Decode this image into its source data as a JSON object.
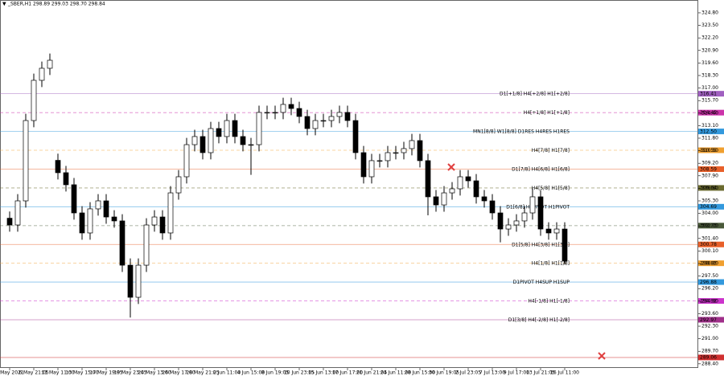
{
  "chart_data": {
    "type": "candlestick",
    "title": "_SBER,H1  298.89 299.03 298.70 298.84",
    "up_color": "#ffffff",
    "down_color": "#000000",
    "line_color": "#000000",
    "xlim": [
      -1.2,
      85.6
    ],
    "ylim": [
      287.97,
      326.13
    ],
    "xticks": [
      {
        "value": 0,
        "label": "4 May 2021"
      },
      {
        "value": 3,
        "label": "6 May 21:05"
      },
      {
        "value": 6,
        "label": "11 May 11:00"
      },
      {
        "value": 9,
        "label": "13 May 15:00"
      },
      {
        "value": 12,
        "label": "17 May 19:05"
      },
      {
        "value": 15,
        "label": "19 May 23:05"
      },
      {
        "value": 18,
        "label": "24 May 13:00"
      },
      {
        "value": 21,
        "label": "26 May 17:00"
      },
      {
        "value": 24,
        "label": "28 May 21:05"
      },
      {
        "value": 27,
        "label": "2 Jun 11:00"
      },
      {
        "value": 30,
        "label": "4 Jun 15:00"
      },
      {
        "value": 33,
        "label": "8 Jun 19:05"
      },
      {
        "value": 36,
        "label": "10 Jun 23:05"
      },
      {
        "value": 39,
        "label": "15 Jun 13:00"
      },
      {
        "value": 42,
        "label": "17 Jun 17:00"
      },
      {
        "value": 45,
        "label": "21 Jun 21:05"
      },
      {
        "value": 48,
        "label": "24 Jun 11:00"
      },
      {
        "value": 51,
        "label": "28 Jun 15:00"
      },
      {
        "value": 54,
        "label": "30 Jun 19:05"
      },
      {
        "value": 57,
        "label": "2 Jul 23:05"
      },
      {
        "value": 60,
        "label": "7 Jul 13:00"
      },
      {
        "value": 63,
        "label": "9 Jul 17:00"
      },
      {
        "value": 66,
        "label": "13 Jul 21:05"
      },
      {
        "value": 69,
        "label": "16 Jul 11:00"
      }
    ],
    "yticks": [
      {
        "value": 288.4,
        "label": "288.40"
      },
      {
        "value": 289.7,
        "label": "289.70"
      },
      {
        "value": 291,
        "label": "291.00"
      },
      {
        "value": 292.3,
        "label": "292.30"
      },
      {
        "value": 293.6,
        "label": "293.60"
      },
      {
        "value": 294.9,
        "label": "294.90"
      },
      {
        "value": 296.2,
        "label": "296.20"
      },
      {
        "value": 297.5,
        "label": "297.50"
      },
      {
        "value": 298.8,
        "label": "298.80"
      },
      {
        "value": 300.1,
        "label": "300.10"
      },
      {
        "value": 301.4,
        "label": "301.40"
      },
      {
        "value": 302.7,
        "label": "302.70"
      },
      {
        "value": 304,
        "label": "304.00"
      },
      {
        "value": 305.3,
        "label": "305.30"
      },
      {
        "value": 306.6,
        "label": "306.60"
      },
      {
        "value": 307.9,
        "label": "307.90"
      },
      {
        "value": 309.2,
        "label": "309.20"
      },
      {
        "value": 310.5,
        "label": "310.50"
      },
      {
        "value": 311.8,
        "label": "311.80"
      },
      {
        "value": 313.1,
        "label": "313.10"
      },
      {
        "value": 314.4,
        "label": "314.40"
      },
      {
        "value": 315.7,
        "label": "315.70"
      },
      {
        "value": 317,
        "label": "317.00"
      },
      {
        "value": 318.3,
        "label": "318.30"
      },
      {
        "value": 319.6,
        "label": "319.60"
      },
      {
        "value": 320.9,
        "label": "320.90"
      },
      {
        "value": 322.2,
        "label": "322.20"
      },
      {
        "value": 323.5,
        "label": "323.50"
      },
      {
        "value": 324.8,
        "label": "324.80"
      }
    ],
    "open": [
      303.5,
      302.8,
      305.3,
      313.63,
      317.8,
      319.05,
      309.5,
      308.22,
      306.97,
      304.05,
      301.97,
      304.47,
      305.3,
      303.63,
      303.22,
      298.63,
      295.3,
      298.63,
      302.8,
      303.63,
      301.97,
      306.13,
      307.8,
      311.13,
      311.97,
      310.3,
      312.8,
      311.97,
      313.63,
      311.97,
      311.13,
      311.13,
      314.47,
      314.47,
      314.47,
      315.3,
      314.88,
      314.05,
      312.8,
      313.63,
      313.63,
      314.05,
      314.47,
      313.63,
      310.3,
      307.8,
      309.47,
      309.47,
      310.3,
      310.3,
      310.72,
      311.55,
      309.47,
      305.72,
      304.88,
      306.13,
      306.55,
      307.8,
      307.38,
      305.72,
      305.3,
      304.05,
      302.38,
      302.8,
      303.22,
      304.05,
      305.72,
      302.38,
      301.97,
      302.38
    ],
    "high": [
      304.2,
      306.0,
      314.33,
      318.5,
      319.75,
      320.58,
      310.2,
      308.92,
      307.67,
      304.75,
      305.17,
      306.0,
      306.0,
      304.33,
      303.92,
      299.33,
      299.33,
      303.5,
      304.33,
      304.33,
      306.83,
      308.5,
      311.83,
      312.67,
      312.67,
      313.5,
      313.5,
      314.33,
      314.33,
      312.67,
      311.83,
      315.17,
      315.17,
      315.17,
      316.0,
      316.0,
      315.58,
      314.75,
      314.33,
      314.33,
      314.75,
      315.17,
      315.17,
      314.33,
      311.0,
      310.17,
      310.17,
      311.0,
      311.0,
      311.42,
      312.25,
      312.25,
      310.17,
      306.42,
      306.83,
      307.25,
      308.5,
      308.5,
      308.08,
      306.42,
      306.0,
      304.75,
      303.5,
      303.92,
      304.75,
      306.6,
      306.42,
      303.08,
      303.08,
      303.08
    ],
    "low": [
      302.1,
      302.1,
      304.6,
      312.93,
      317.1,
      318.35,
      307.52,
      306.27,
      303.35,
      301.27,
      301.27,
      303.77,
      302.93,
      302.52,
      297.93,
      293.2,
      294.6,
      297.93,
      302.1,
      301.27,
      301.27,
      305.43,
      307.1,
      310.43,
      309.6,
      309.6,
      311.27,
      311.27,
      311.27,
      310.43,
      308.0,
      310.43,
      313.77,
      313.77,
      313.77,
      314.18,
      313.35,
      312.1,
      312.1,
      312.93,
      312.93,
      313.35,
      312.93,
      309.6,
      307.1,
      307.1,
      308.77,
      308.77,
      309.6,
      309.6,
      310.02,
      308.77,
      303.8,
      304.18,
      304.18,
      305.43,
      305.85,
      306.68,
      305.02,
      304.6,
      303.35,
      301.0,
      301.68,
      302.1,
      302.52,
      303.35,
      301.68,
      301.27,
      301.27,
      298.7
    ],
    "close": [
      302.8,
      305.3,
      313.63,
      317.8,
      319.05,
      319.88,
      308.22,
      306.97,
      304.05,
      301.97,
      304.47,
      305.3,
      303.63,
      303.22,
      298.63,
      295.3,
      298.63,
      302.8,
      303.63,
      301.97,
      306.13,
      307.8,
      311.13,
      311.97,
      310.3,
      312.8,
      311.97,
      313.63,
      311.97,
      311.13,
      311.13,
      314.47,
      314.47,
      314.47,
      315.3,
      314.88,
      314.05,
      312.8,
      313.63,
      313.63,
      314.05,
      314.47,
      313.63,
      310.3,
      307.8,
      309.47,
      309.47,
      310.3,
      310.3,
      310.72,
      311.55,
      309.47,
      305.72,
      304.88,
      306.13,
      306.55,
      307.8,
      307.38,
      305.72,
      305.3,
      304.05,
      302.38,
      302.8,
      303.22,
      304.05,
      305.72,
      302.38,
      301.97,
      302.38,
      299.05
    ],
    "levels": [
      {
        "price": 316.41,
        "label": "D1[+1/8] H4[+2/8] H1[+2/8]",
        "color": "#a060c0",
        "dashed": false
      },
      {
        "price": 314.45,
        "label": "H4[+1/8] H1[+1/8]",
        "color": "#cc33aa",
        "dashed": true
      },
      {
        "price": {
          "value": 312.5,
          "label": "312.50"
        },
        "label": "MN1[8/8] W1[8/8] D1RES H4RES H1RES",
        "color": "#3399dd",
        "dashed": false
      },
      {
        "price": 310.55,
        "label": "H4[7/8] H1[7/8]",
        "color": "#f0a030",
        "dashed": true
      },
      {
        "price": 308.59,
        "label": "D1[7/8] H4[6/8] H1[6/8]",
        "color": "#e8602a",
        "dashed": false
      },
      {
        "price": 306.64,
        "label": "H4[5/8] H1[5/8]",
        "color": "#6b6b30",
        "dashed": true
      },
      {
        "price": 304.69,
        "label": "D1[6/8] H4PIVOT H1PIVOT",
        "color": "#3399dd",
        "dashed": false
      },
      {
        "price": 302.73,
        "color": "#4a5a3a",
        "dashed": true
      },
      {
        "price": 300.78,
        "label": "D1[5/8] H4[3/8] H1[3/8]",
        "color": "#e8602a",
        "dashed": false
      },
      {
        "price": 298.83,
        "label": "H4[1/8] H1[1/8]",
        "color": "#f0a030",
        "dashed": true
      },
      {
        "price": 296.88,
        "label": "D1PIVOT H4SUP H1SUP",
        "color": "#3399dd",
        "dashed": false
      },
      {
        "price": 294.92,
        "label": "H4[-1/8] H1[-1/8]",
        "color": "#cc33cc",
        "dashed": true
      },
      {
        "price": 292.97,
        "label": "D1[3/8] H4[-2/8] H1[-2/8]",
        "color": "#a0308a",
        "dashed": false
      },
      {
        "price": 289.06,
        "color": "#d03030",
        "dashed": false
      }
    ]
  }
}
